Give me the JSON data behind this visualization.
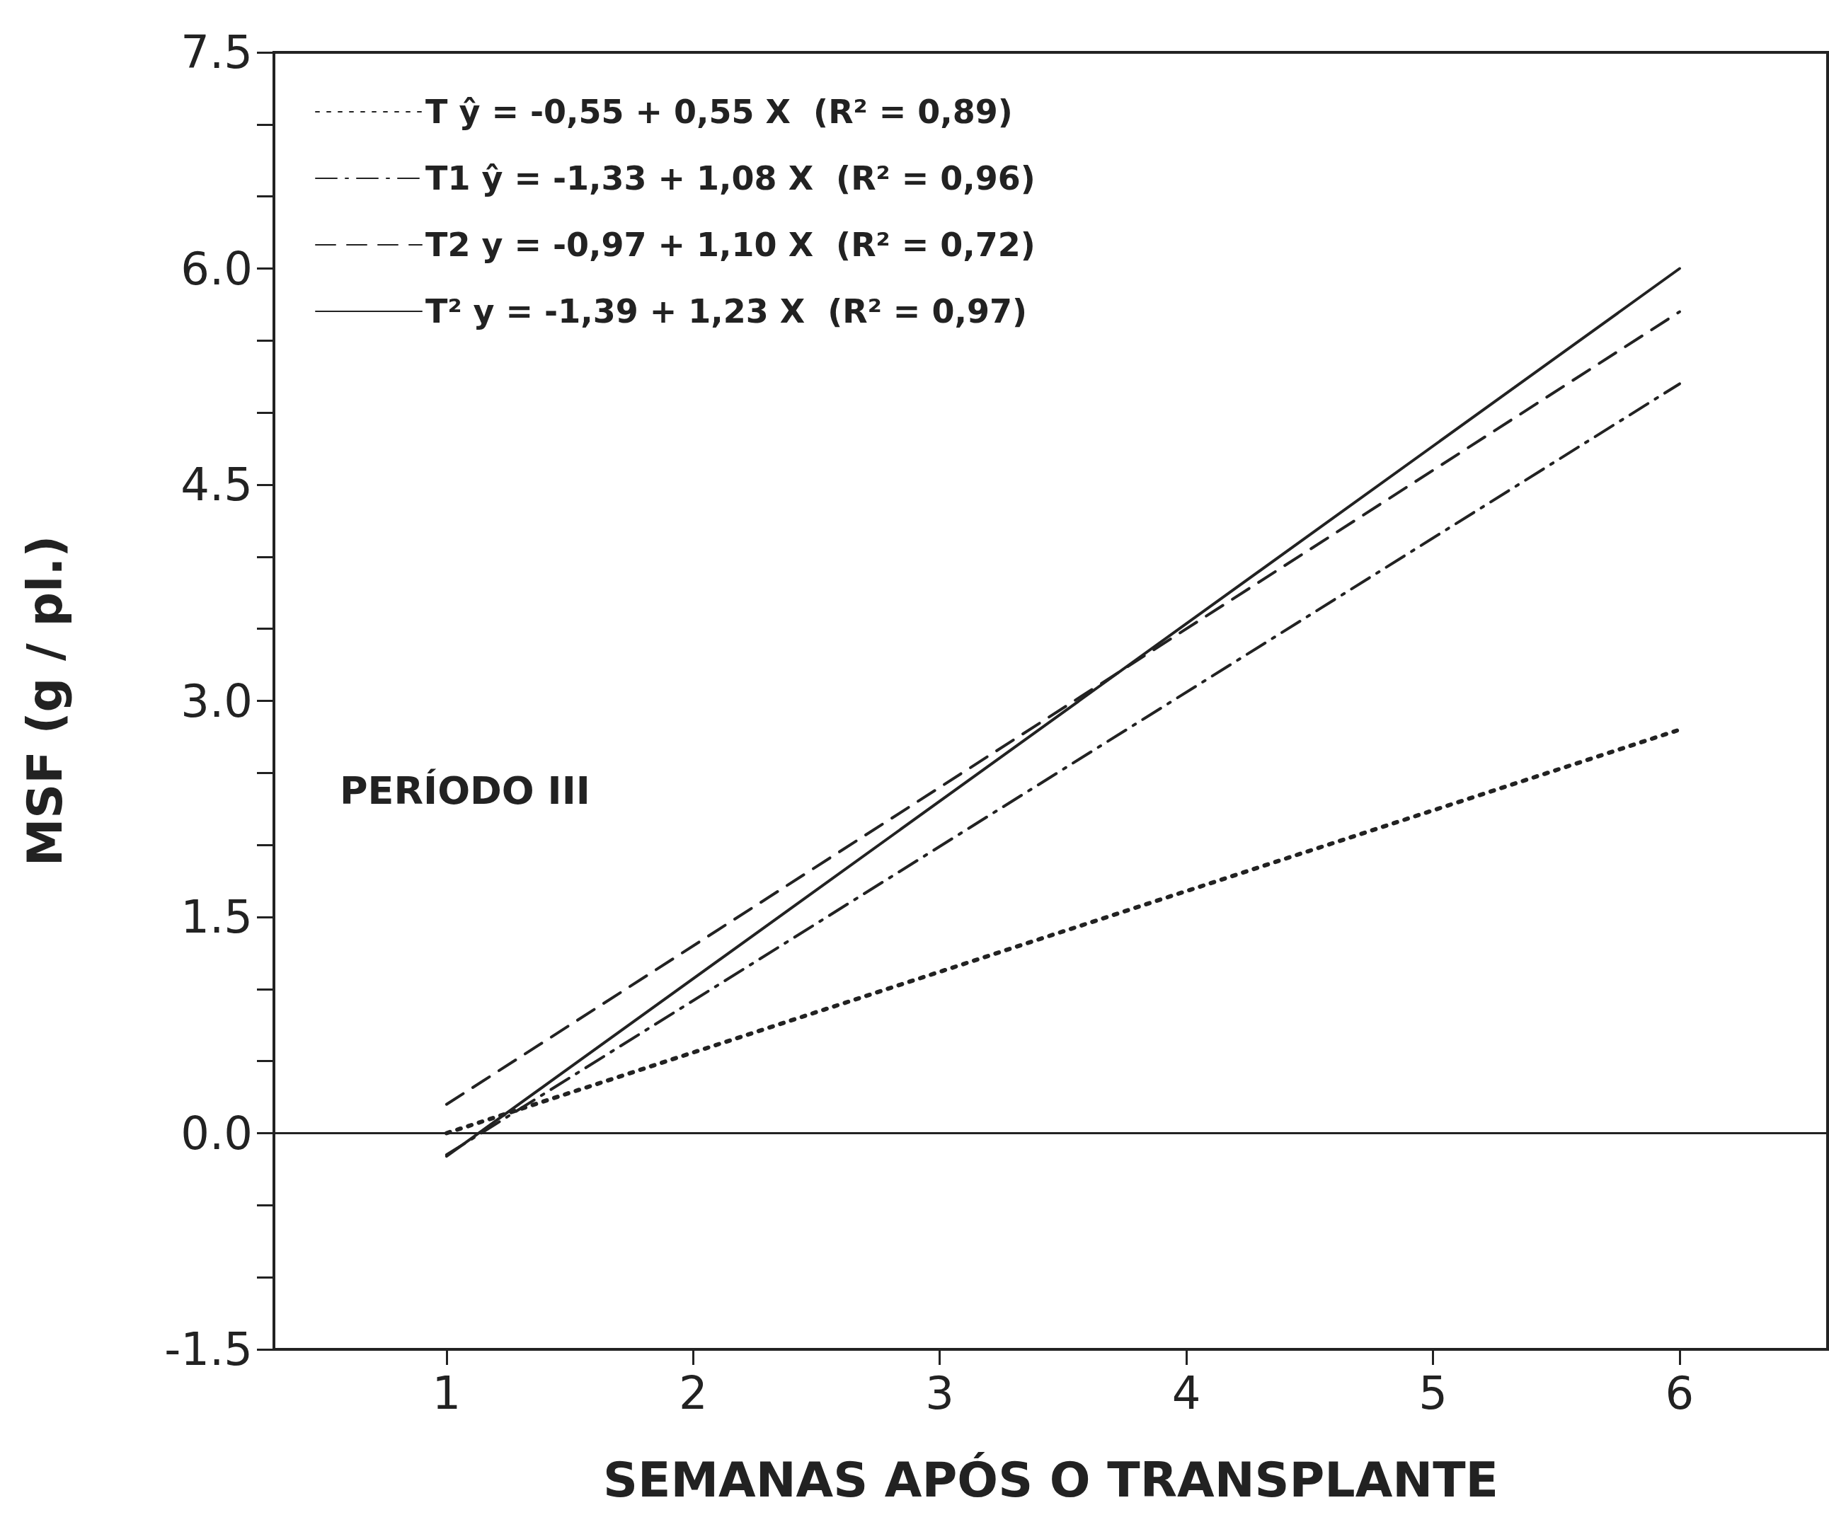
{
  "chart_data": {
    "type": "line",
    "xlabel": "SEMANAS APÓS O TRANSPLANTE",
    "ylabel": "MSF (g / pl.)",
    "xlim": [
      0.3,
      6.6
    ],
    "xticks": [
      1,
      2,
      3,
      4,
      5,
      6
    ],
    "ylim": [
      -1.5,
      7.5
    ],
    "yticks": [
      {
        "value": -1.5,
        "label": "-1.5"
      },
      {
        "value": 0,
        "label": "0.0"
      },
      {
        "value": 1.5,
        "label": "1.5"
      },
      {
        "value": 3,
        "label": "3.0"
      },
      {
        "value": 4.5,
        "label": "4.5"
      },
      {
        "value": 6,
        "label": "6.0"
      },
      {
        "value": 7.5,
        "label": "7.5"
      }
    ],
    "grid": false,
    "legend": "top left",
    "marker": "none",
    "ref_lines": [
      {
        "axis": "y",
        "value": 0,
        "label": null,
        "color": "#222222",
        "line_style": "solid"
      }
    ],
    "annotations": [
      "PERÍODO III"
    ],
    "x": [
      1,
      6
    ],
    "series": [
      {
        "name": "T ŷ = -0,55 + 0,55 X  (R² = 0,89)",
        "color": "#222222",
        "line_style": "dotted",
        "values": [
          0.0,
          2.8
        ]
      },
      {
        "name": "T1 ŷ = -1,33 + 1,08 X  (R² = 0,96)",
        "color": "#222222",
        "line_style": "dashdot",
        "values": [
          -0.15,
          5.2
        ]
      },
      {
        "name": "T2 y = -0,97 + 1,10 X  (R² = 0,72)",
        "color": "#222222",
        "line_style": "dashed",
        "values": [
          0.2,
          5.7
        ]
      },
      {
        "name": "T² y = -1,39 + 1,23 X  (R² = 0,97)",
        "color": "#222222",
        "line_style": "solid",
        "values": [
          -0.16,
          6.0
        ]
      }
    ]
  }
}
